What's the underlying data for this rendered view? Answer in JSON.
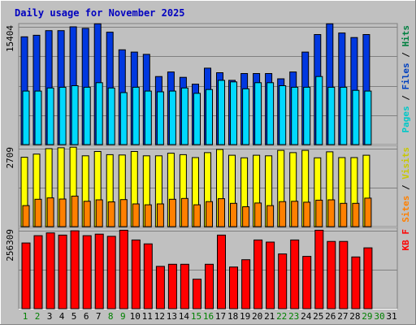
{
  "chart_data": [
    {
      "type": "bar",
      "title": "Daily usage for November 2025",
      "categories": [
        "1",
        "2",
        "3",
        "4",
        "5",
        "6",
        "7",
        "8",
        "9",
        "10",
        "11",
        "12",
        "13",
        "14",
        "15",
        "16",
        "17",
        "18",
        "19",
        "20",
        "21",
        "22",
        "23",
        "24",
        "25",
        "26",
        "27",
        "28",
        "29",
        "30",
        "31"
      ],
      "ylabel_parts": [
        {
          "text": "Pages",
          "color": "#00c8c8"
        },
        {
          "text": " / ",
          "color": "#000000"
        },
        {
          "text": "Files",
          "color": "#0040c0"
        },
        {
          "text": " / ",
          "color": "#000000"
        },
        {
          "text": "Hits",
          "color": "#008040"
        }
      ],
      "ymax_label": "15404",
      "ylim": [
        0,
        15404
      ],
      "series": [
        {
          "name": "Hits",
          "color": "#0038e0",
          "values": [
            14100,
            14300,
            14900,
            14900,
            15400,
            15200,
            15800,
            14700,
            12400,
            12100,
            11800,
            8900,
            9500,
            8800,
            7900,
            10000,
            9400,
            8400,
            9300,
            9300,
            9300,
            8600,
            9500,
            12100,
            14400,
            15800,
            14600,
            14000,
            14400,
            null,
            null
          ]
        },
        {
          "name": "Pages",
          "color": "#00d8ff",
          "values": [
            7000,
            7000,
            7400,
            7500,
            7700,
            7500,
            8100,
            7400,
            6800,
            7500,
            7000,
            6900,
            7000,
            7400,
            6700,
            7200,
            8400,
            8200,
            7300,
            8100,
            8100,
            7700,
            7500,
            7500,
            8900,
            7500,
            7500,
            7100,
            7000,
            null,
            null
          ]
        }
      ]
    },
    {
      "type": "bar",
      "categories": [
        "1",
        "2",
        "3",
        "4",
        "5",
        "6",
        "7",
        "8",
        "9",
        "10",
        "11",
        "12",
        "13",
        "14",
        "15",
        "16",
        "17",
        "18",
        "19",
        "20",
        "21",
        "22",
        "23",
        "24",
        "25",
        "26",
        "27",
        "28",
        "29",
        "30",
        "31"
      ],
      "ylabel_parts": [
        {
          "text": "Sites",
          "color": "#ff8000"
        },
        {
          "text": " / ",
          "color": "#000000"
        },
        {
          "text": "Visits",
          "color": "#c8c800"
        }
      ],
      "ymax_label": "2709",
      "ylim": [
        0,
        2709
      ],
      "series": [
        {
          "name": "Visits",
          "color": "#ffff00",
          "values": [
            2410,
            2520,
            2710,
            2740,
            2760,
            2460,
            2610,
            2500,
            2490,
            2610,
            2460,
            2460,
            2550,
            2500,
            2400,
            2570,
            2680,
            2480,
            2390,
            2480,
            2460,
            2650,
            2570,
            2650,
            2390,
            2600,
            2400,
            2400,
            2480,
            null,
            null
          ]
        },
        {
          "name": "Sites",
          "color": "#ff8000",
          "values": [
            730,
            950,
            1000,
            960,
            1060,
            880,
            930,
            860,
            940,
            790,
            760,
            790,
            950,
            980,
            760,
            870,
            970,
            810,
            690,
            820,
            730,
            870,
            880,
            850,
            920,
            930,
            810,
            810,
            990,
            null,
            null
          ]
        }
      ]
    },
    {
      "type": "bar",
      "categories": [
        "1",
        "2",
        "3",
        "4",
        "5",
        "6",
        "7",
        "8",
        "9",
        "10",
        "11",
        "12",
        "13",
        "14",
        "15",
        "16",
        "17",
        "18",
        "19",
        "20",
        "21",
        "22",
        "23",
        "24",
        "25",
        "26",
        "27",
        "28",
        "29",
        "30",
        "31"
      ],
      "ylabel_parts": [
        {
          "text": "KB F",
          "color": "#ff0000"
        }
      ],
      "ymax_label": "256309",
      "ylim": [
        0,
        256309
      ],
      "series": [
        {
          "name": "KB F",
          "color": "#ff0000",
          "values": [
            216000,
            240000,
            249000,
            242000,
            256000,
            240000,
            245000,
            238000,
            258000,
            226000,
            213000,
            139000,
            146000,
            146000,
            97000,
            146000,
            242000,
            137000,
            161000,
            226000,
            219000,
            180000,
            226000,
            172000,
            258000,
            221000,
            221000,
            170000,
            200000,
            null,
            null
          ]
        }
      ]
    }
  ],
  "x_label_colors": {
    "weekday": "#000000",
    "weekend": "#008000"
  },
  "weekend_days": [
    1,
    2,
    8,
    9,
    15,
    16,
    22,
    23,
    29,
    30
  ]
}
